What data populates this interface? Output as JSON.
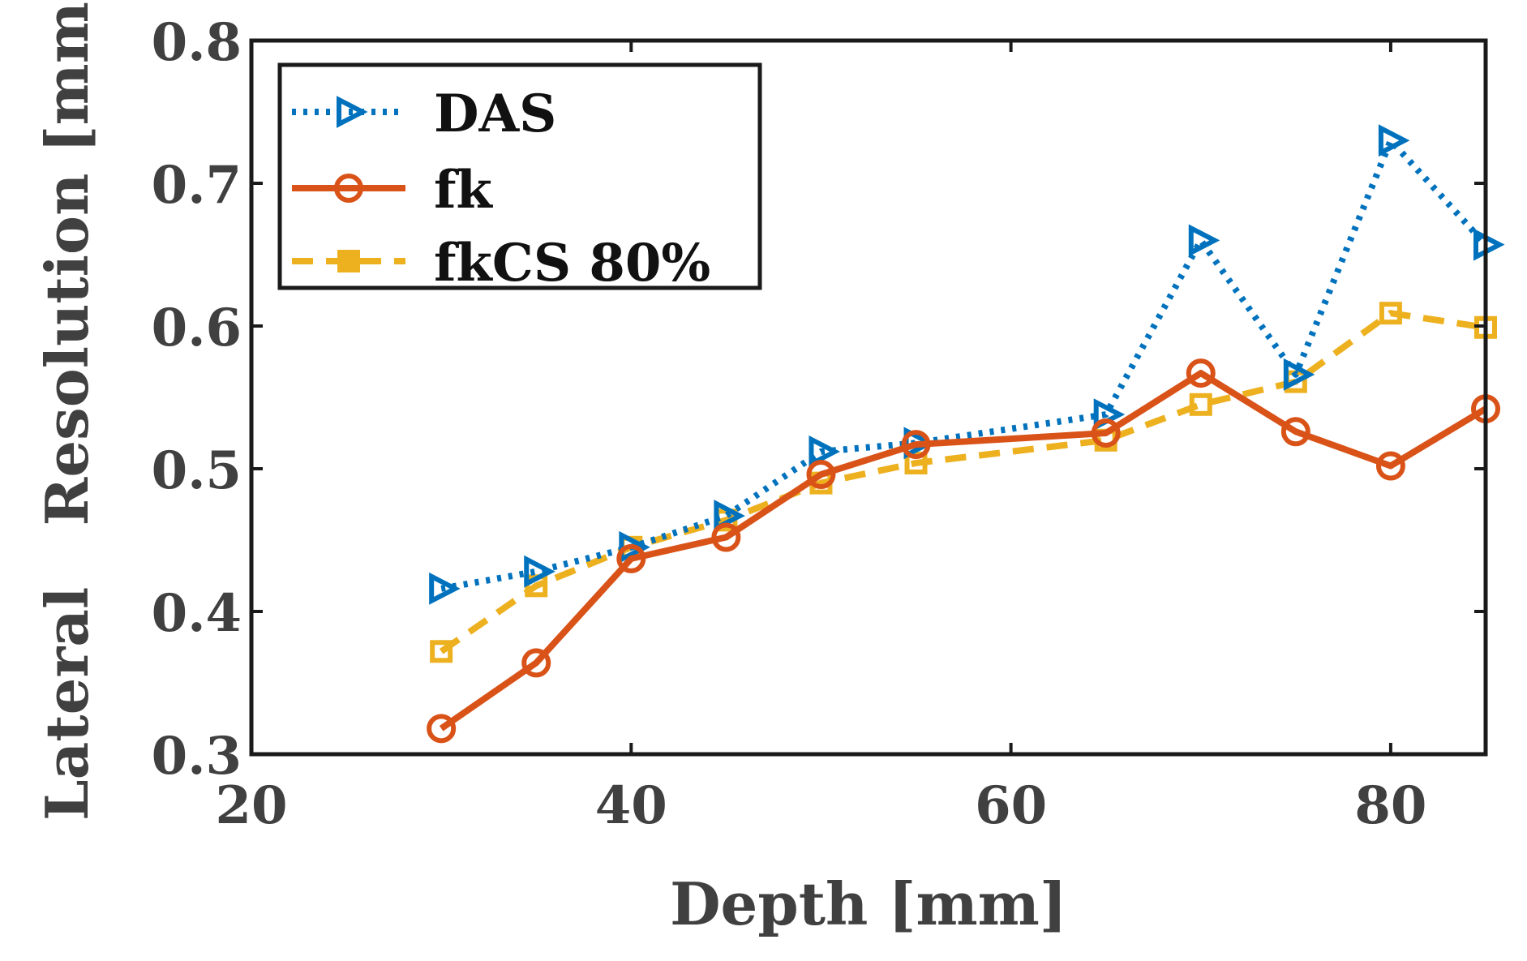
{
  "chart_data": {
    "type": "line",
    "title": "",
    "xlabel": "Depth [mm]",
    "ylabel": "Lateral   Resolution [mm]",
    "xlim": [
      20,
      85
    ],
    "ylim": [
      0.3,
      0.8
    ],
    "xticks": [
      20,
      40,
      60,
      80
    ],
    "xtick_labels": [
      "20",
      "40",
      "60",
      "80"
    ],
    "yticks": [
      0.3,
      0.4,
      0.5,
      0.6,
      0.7,
      0.8
    ],
    "ytick_labels": [
      "0.3",
      "0.4",
      "0.5",
      "0.6",
      "0.7",
      "0.8"
    ],
    "grid": false,
    "legend_position": "top-left",
    "series": [
      {
        "name": "DAS",
        "color": "#0072BD",
        "line_style": "dotted",
        "marker": "triangle-right",
        "x": [
          30,
          35,
          40,
          45,
          50,
          55,
          65,
          70,
          75,
          80,
          85
        ],
        "values": [
          0.416,
          0.428,
          0.445,
          0.467,
          0.512,
          0.518,
          0.538,
          0.66,
          0.566,
          0.73,
          0.657
        ]
      },
      {
        "name": "fk",
        "color": "#D95319",
        "line_style": "solid",
        "marker": "circle",
        "x": [
          30,
          35,
          40,
          45,
          50,
          55,
          65,
          70,
          75,
          80,
          85
        ],
        "values": [
          0.318,
          0.364,
          0.437,
          0.452,
          0.496,
          0.517,
          0.525,
          0.567,
          0.526,
          0.502,
          0.542
        ]
      },
      {
        "name": "fkCS  80%",
        "color": "#EDB120",
        "line_style": "dashed",
        "marker": "square",
        "x": [
          30,
          35,
          40,
          45,
          50,
          55,
          65,
          70,
          75,
          80,
          85
        ],
        "values": [
          0.372,
          0.418,
          0.445,
          0.464,
          0.49,
          0.504,
          0.52,
          0.545,
          0.561,
          0.609,
          0.599
        ]
      }
    ]
  }
}
